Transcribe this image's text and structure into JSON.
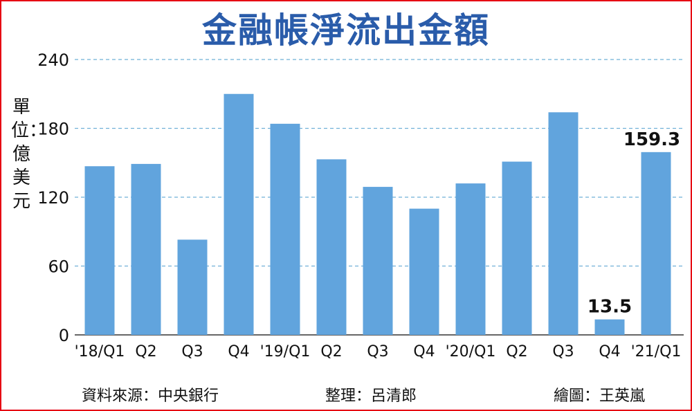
{
  "title": "金融帳淨流出金額",
  "unit_label": "單位：億美元",
  "footer": {
    "source": "資料來源：中央銀行",
    "editor": "整理：呂清郎",
    "illustrator": "繪圖：王英嵐"
  },
  "colors": {
    "bar": "#61a4dd",
    "title": "#2a5caa",
    "grid": "#6fb0d8",
    "border": "#e60012"
  },
  "chart_data": {
    "type": "bar",
    "categories": [
      "'18/Q1",
      "Q2",
      "Q3",
      "Q4",
      "'19/Q1",
      "Q2",
      "Q3",
      "Q4",
      "'20/Q1",
      "Q2",
      "Q3",
      "Q4",
      "'21/Q1"
    ],
    "values": [
      147,
      149,
      83,
      210,
      184,
      153,
      129,
      110,
      132,
      151,
      194,
      13.5,
      159.3
    ],
    "data_labels": [
      null,
      null,
      null,
      null,
      null,
      null,
      null,
      null,
      null,
      null,
      null,
      "13.5",
      "159.3"
    ],
    "yticks": [
      "0",
      "60",
      "120",
      "180",
      "240"
    ],
    "ylim": [
      0,
      240
    ],
    "grid": true
  }
}
